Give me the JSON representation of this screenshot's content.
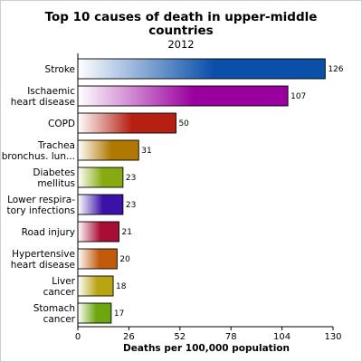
{
  "chart_data": {
    "type": "bar",
    "orientation": "horizontal",
    "title": "Top 10 causes of death in upper-middle countries",
    "title_lines": [
      "Top 10 causes of death in upper-middle",
      "countries"
    ],
    "subtitle": "2012",
    "xlabel": "Deaths per 100,000 population",
    "ylabel": "",
    "xlim": [
      0,
      130
    ],
    "xticks": [
      0,
      26,
      52,
      78,
      104,
      130
    ],
    "grid": false,
    "legend": "none",
    "categories": [
      "Stroke",
      "Ischaemic heart disease",
      "COPD",
      "Trachea bronchus. lun...",
      "Diabetes mellitus",
      "Lower respira-tory infections",
      "Road injury",
      "Hypertensive heart disease",
      "Liver cancer",
      "Stomach cancer"
    ],
    "category_lines": [
      [
        "Stroke"
      ],
      [
        "Ischaemic",
        "heart disease"
      ],
      [
        "COPD"
      ],
      [
        "Trachea",
        "bronchus. lun..."
      ],
      [
        "Diabetes",
        "mellitus"
      ],
      [
        "Lower respira-",
        "tory infections"
      ],
      [
        "Road injury"
      ],
      [
        "Hypertensive",
        "heart disease"
      ],
      [
        "Liver",
        "cancer"
      ],
      [
        "Stomach",
        "cancer"
      ]
    ],
    "values": [
      126,
      107,
      50,
      31,
      23,
      23,
      21,
      20,
      18,
      17
    ],
    "colors": [
      "#0a4fa8",
      "#9a009f",
      "#b52012",
      "#b07800",
      "#88aa10",
      "#3a12a8",
      "#a70d35",
      "#c15a0b",
      "#b9a414",
      "#6ea60f"
    ]
  }
}
